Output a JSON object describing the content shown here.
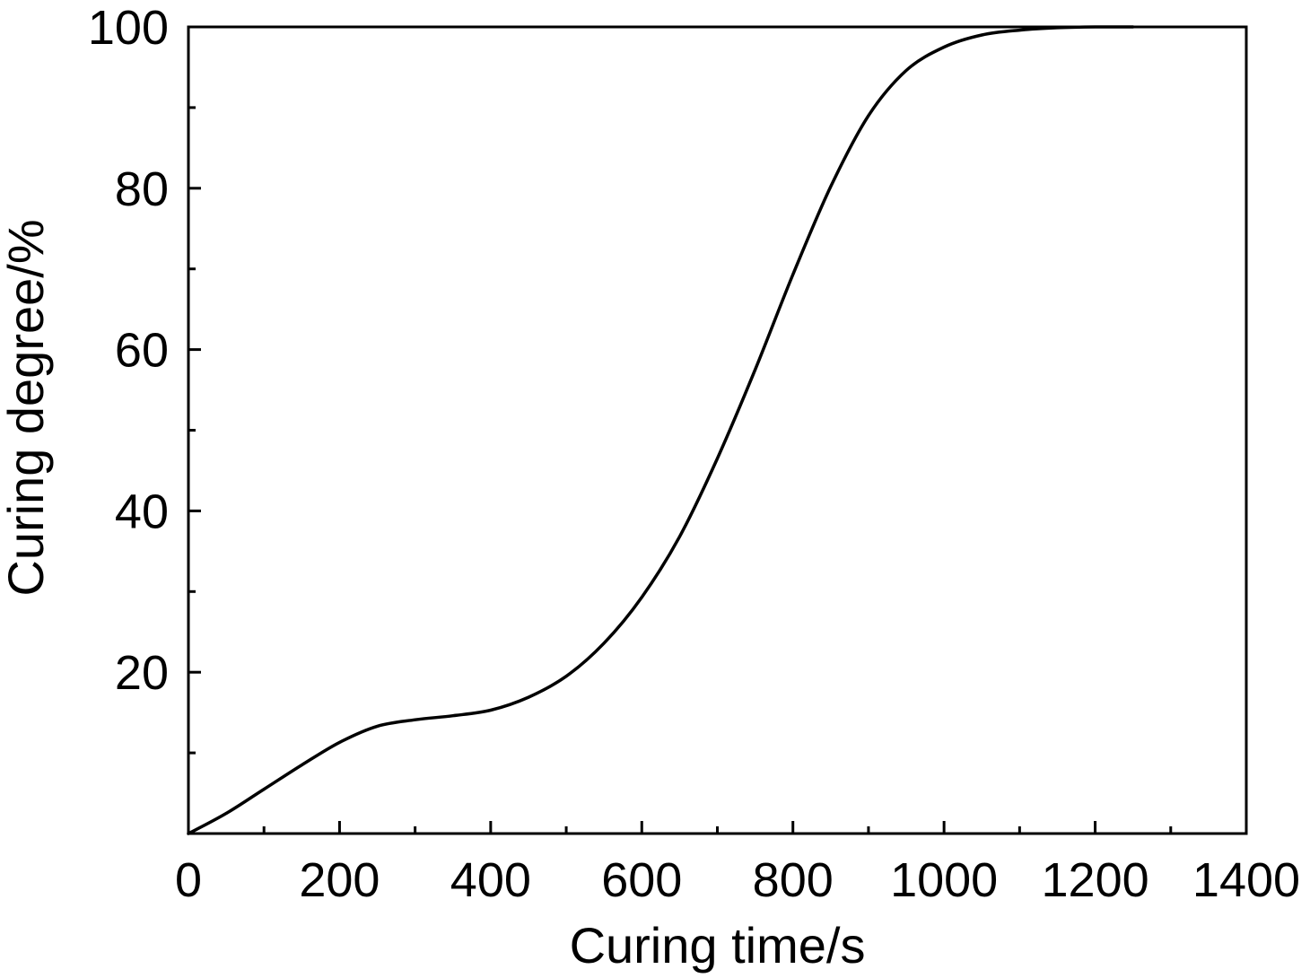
{
  "chart_data": {
    "type": "line",
    "title": "",
    "xlabel": "Curing time/s",
    "ylabel": "Curing degree/%",
    "xlim": [
      0,
      1400
    ],
    "ylim": [
      0,
      100
    ],
    "x_ticks": [
      0,
      200,
      400,
      600,
      800,
      1000,
      1200,
      1400
    ],
    "x_tick_labels": [
      "0",
      "200",
      "400",
      "600",
      "800",
      "1000",
      "1200",
      "1400"
    ],
    "x_minor_ticks": [
      100,
      300,
      500,
      700,
      900,
      1100,
      1300
    ],
    "y_ticks": [
      20,
      40,
      60,
      80,
      100
    ],
    "y_tick_labels": [
      "20",
      "40",
      "60",
      "80",
      "100"
    ],
    "y_minor_ticks": [
      10,
      30,
      50,
      70,
      90
    ],
    "grid": false,
    "legend": "none",
    "line_color": "#000000",
    "series": [
      {
        "x": [
          0,
          50,
          100,
          150,
          200,
          250,
          300,
          350,
          400,
          450,
          500,
          550,
          600,
          650,
          700,
          750,
          800,
          850,
          900,
          950,
          1000,
          1050,
          1100,
          1150,
          1200,
          1250
        ],
        "values": [
          0,
          2.5,
          5.5,
          8.5,
          11.3,
          13.3,
          14.1,
          14.6,
          15.3,
          16.9,
          19.5,
          23.6,
          29.3,
          36.8,
          46.5,
          57.5,
          69.3,
          80.2,
          89.0,
          94.6,
          97.5,
          99.0,
          99.6,
          99.9,
          100,
          100
        ]
      }
    ]
  }
}
